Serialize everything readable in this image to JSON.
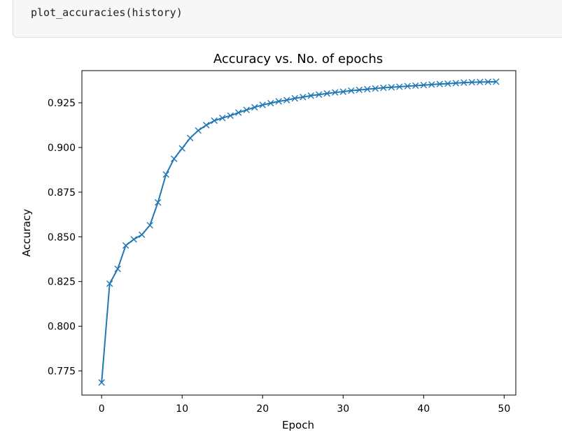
{
  "code_cell": {
    "code": "plot_accuracies(history)"
  },
  "chart_data": {
    "type": "line",
    "title": "Accuracy vs. No. of epochs",
    "xlabel": "Epoch",
    "ylabel": "Accuracy",
    "xlim": [
      -2.45,
      51.45
    ],
    "ylim": [
      0.7615,
      0.943
    ],
    "xticks": [
      0,
      10,
      20,
      30,
      40,
      50
    ],
    "yticks": [
      0.775,
      0.8,
      0.825,
      0.85,
      0.875,
      0.9,
      0.925
    ],
    "ytick_labels": [
      "0.775",
      "0.800",
      "0.825",
      "0.850",
      "0.875",
      "0.900",
      "0.925"
    ],
    "xtick_labels": [
      "0",
      "10",
      "20",
      "30",
      "40",
      "50"
    ],
    "grid": false,
    "series": [
      {
        "color": "#1f77b4",
        "marker": "x",
        "x": [
          0,
          1,
          2,
          3,
          4,
          5,
          6,
          7,
          8,
          9,
          10,
          11,
          12,
          13,
          14,
          15,
          16,
          17,
          18,
          19,
          20,
          21,
          22,
          23,
          24,
          25,
          26,
          27,
          28,
          29,
          30,
          31,
          32,
          33,
          34,
          35,
          36,
          37,
          38,
          39,
          40,
          41,
          42,
          43,
          44,
          45,
          46,
          47,
          48,
          49
        ],
        "y": [
          0.7685,
          0.8238,
          0.8321,
          0.8452,
          0.8486,
          0.8512,
          0.8565,
          0.8693,
          0.8849,
          0.8937,
          0.8995,
          0.9053,
          0.9095,
          0.9125,
          0.915,
          0.9165,
          0.9178,
          0.9195,
          0.921,
          0.9225,
          0.9238,
          0.9248,
          0.9258,
          0.9265,
          0.9275,
          0.9282,
          0.929,
          0.9296,
          0.9302,
          0.9308,
          0.9312,
          0.9318,
          0.9322,
          0.9326,
          0.933,
          0.9334,
          0.9337,
          0.934,
          0.9343,
          0.9346,
          0.9349,
          0.9352,
          0.9355,
          0.9357,
          0.936,
          0.9363,
          0.9365,
          0.9366,
          0.9367,
          0.9368
        ]
      }
    ]
  }
}
